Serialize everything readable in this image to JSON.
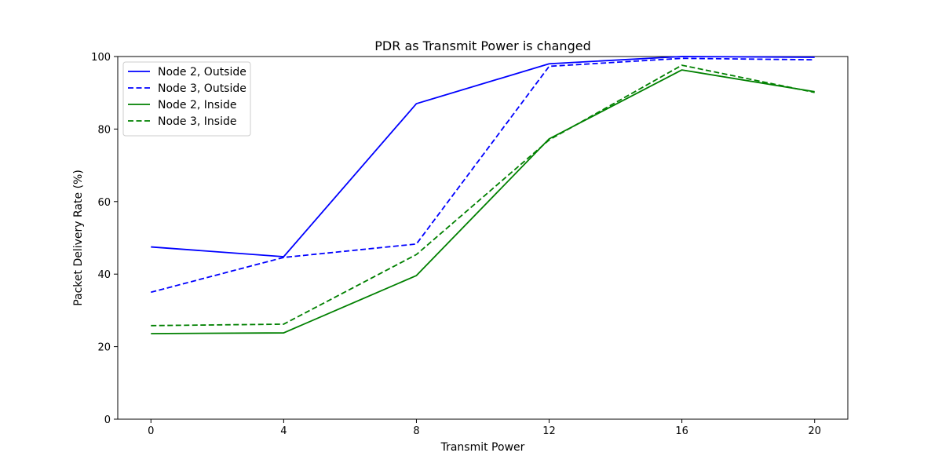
{
  "chart_data": {
    "type": "line",
    "title": "PDR as Transmit Power is changed",
    "xlabel": "Transmit Power",
    "ylabel": "Packet Delivery Rate (%)",
    "x": [
      0,
      4,
      8,
      12,
      16,
      20
    ],
    "xlim": [
      -1,
      21
    ],
    "ylim": [
      0,
      100
    ],
    "xticks": [
      0,
      4,
      8,
      12,
      16,
      20
    ],
    "yticks": [
      0,
      20,
      40,
      60,
      80,
      100
    ],
    "grid": false,
    "legend_position": "top-left",
    "series": [
      {
        "name": "Node 2, Outside",
        "color": "#0000ff",
        "dashed": false,
        "values": [
          47.5,
          44.8,
          87.0,
          98.0,
          100.0,
          99.8
        ]
      },
      {
        "name": "Node 3, Outside",
        "color": "#0000ff",
        "dashed": true,
        "values": [
          35.0,
          44.6,
          48.3,
          97.3,
          99.5,
          99.1
        ]
      },
      {
        "name": "Node 2, Inside",
        "color": "#008000",
        "dashed": false,
        "values": [
          23.6,
          23.8,
          39.6,
          77.3,
          96.3,
          90.3
        ]
      },
      {
        "name": "Node 3, Inside",
        "color": "#008000",
        "dashed": true,
        "values": [
          25.8,
          26.2,
          45.4,
          77.0,
          97.6,
          90.1
        ]
      }
    ]
  }
}
